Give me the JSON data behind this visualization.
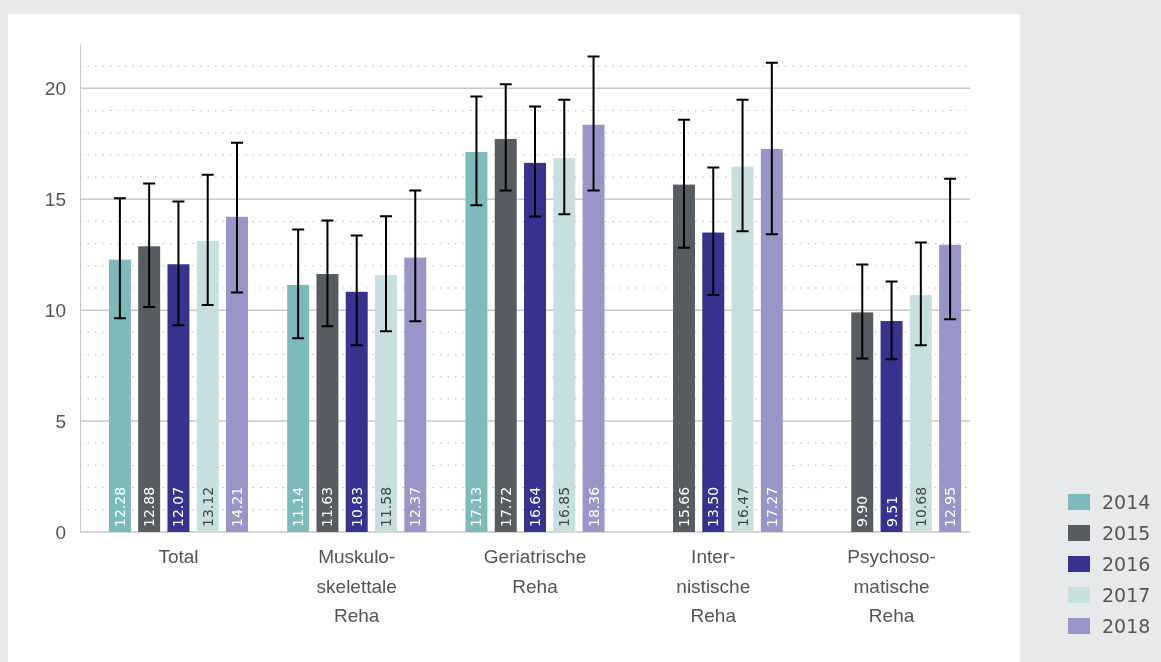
{
  "chart_data": {
    "type": "bar",
    "categories": [
      "Total",
      "Muskulo-\nskelettale\nReha",
      "Geriatrische\nReha",
      "Inter-\nnistische\nReha",
      "Psychoso-\nmatische\nReha"
    ],
    "series": [
      {
        "name": "2014",
        "color": "#7dbbbb",
        "values": [
          12.28,
          11.14,
          17.13,
          null,
          null
        ],
        "value_labels": [
          "12.28",
          "11.14",
          "17.13",
          null,
          null
        ],
        "errors": [
          [
            9.64,
            15.05
          ],
          [
            8.74,
            13.64
          ],
          [
            14.73,
            19.63
          ],
          null,
          null
        ]
      },
      {
        "name": "2015",
        "color": "#565c62",
        "values": [
          12.88,
          11.63,
          17.72,
          15.66,
          9.9
        ],
        "value_labels": [
          "12.88",
          "11.63",
          "17.72",
          "15.66",
          "9.90"
        ],
        "errors": [
          [
            10.14,
            15.71
          ],
          [
            9.28,
            14.04
          ],
          [
            15.39,
            20.18
          ],
          [
            12.82,
            18.59
          ],
          [
            7.82,
            12.06
          ]
        ]
      },
      {
        "name": "2016",
        "color": "#37318f",
        "values": [
          12.07,
          10.83,
          16.64,
          13.5,
          9.51
        ],
        "value_labels": [
          "12.07",
          "10.83",
          "16.64",
          "13.50",
          "9.51"
        ],
        "errors": [
          [
            9.32,
            14.9
          ],
          [
            8.42,
            13.37
          ],
          [
            14.22,
            19.18
          ],
          [
            10.68,
            16.43
          ],
          [
            7.79,
            11.29
          ]
        ]
      },
      {
        "name": "2017",
        "color": "#c8dfe0",
        "values": [
          13.12,
          11.58,
          16.85,
          16.47,
          10.68
        ],
        "value_labels": [
          "13.12",
          "11.58",
          "16.85",
          "16.47",
          "10.68"
        ],
        "errors": [
          [
            10.23,
            16.11
          ],
          [
            9.05,
            14.23
          ],
          [
            14.32,
            19.49
          ],
          [
            13.56,
            19.49
          ],
          [
            8.42,
            13.05
          ]
        ]
      },
      {
        "name": "2018",
        "color": "#9a95c8",
        "values": [
          14.21,
          12.37,
          18.36,
          17.27,
          12.95
        ],
        "value_labels": [
          "14.21",
          "12.37",
          "18.36",
          "17.27",
          "12.95"
        ],
        "errors": [
          [
            10.8,
            17.55
          ],
          [
            9.5,
            15.39
          ],
          [
            15.39,
            21.44
          ],
          [
            13.42,
            21.16
          ],
          [
            9.59,
            15.93
          ]
        ]
      }
    ],
    "ylim": [
      0,
      22
    ],
    "yticks": [
      0,
      {
        "value": 1,
        "label": null
      },
      {
        "value": 2,
        "label": null
      },
      {
        "value": 3,
        "label": null
      },
      {
        "value": 4,
        "label": null
      },
      5,
      {
        "value": 6,
        "label": null
      },
      {
        "value": 7,
        "label": null
      },
      {
        "value": 8,
        "label": null
      },
      {
        "value": 9,
        "label": null
      },
      10,
      {
        "value": 11,
        "label": null
      },
      {
        "value": 12,
        "label": null
      },
      {
        "value": 13,
        "label": null
      },
      {
        "value": 14,
        "label": null
      },
      15,
      {
        "value": 16,
        "label": null
      },
      {
        "value": 17,
        "label": null
      },
      {
        "value": 18,
        "label": null
      },
      {
        "value": 19,
        "label": null
      },
      20,
      {
        "value": 21,
        "label": null
      }
    ],
    "grid": "y",
    "legend": "bottom right"
  }
}
